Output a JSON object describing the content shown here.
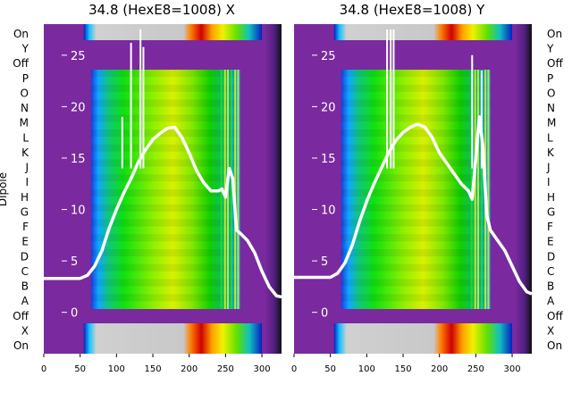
{
  "chart_data": [
    {
      "type": "heatmap",
      "title": "34.8 (HexE8=1008) X",
      "ylabel": "Dipole",
      "x_ticks": [
        0,
        50,
        100,
        150,
        200,
        250,
        300
      ],
      "xlim": [
        0,
        327
      ],
      "overlay_y_ticks": [
        0,
        5,
        10,
        15,
        20,
        25
      ],
      "overlay_ylim": [
        -3.5,
        27.5
      ],
      "row_labels": [
        "On",
        "Y",
        "Off",
        "P",
        "O",
        "N",
        "M",
        "L",
        "K",
        "J",
        "I",
        "H",
        "G",
        "F",
        "E",
        "D",
        "C",
        "B",
        "A",
        "Off",
        "X",
        "On"
      ],
      "power_trace": {
        "x": [
          0,
          50,
          60,
          70,
          80,
          90,
          100,
          110,
          120,
          130,
          140,
          150,
          160,
          170,
          180,
          190,
          200,
          210,
          220,
          230,
          240,
          245,
          250,
          255,
          260,
          265,
          270,
          280,
          290,
          300,
          310,
          320,
          327
        ],
        "y": [
          3.3,
          3.3,
          3.6,
          4.5,
          6.0,
          8.2,
          10.0,
          11.6,
          13.0,
          14.6,
          15.8,
          16.8,
          17.4,
          17.9,
          18.0,
          17.0,
          15.5,
          13.8,
          12.6,
          11.8,
          11.8,
          12.0,
          11.2,
          14.0,
          13.0,
          8.0,
          7.7,
          7.0,
          5.8,
          4.0,
          2.5,
          1.6,
          1.5
        ]
      },
      "spikes": [
        {
          "x": 120,
          "y": 26.2
        },
        {
          "x": 133,
          "y": 27.5
        },
        {
          "x": 137,
          "y": 25.8
        },
        {
          "x": 108,
          "y": 19.0
        }
      ]
    },
    {
      "type": "heatmap",
      "title": "34.8 (HexE8=1008) Y",
      "x_ticks": [
        0,
        50,
        100,
        150,
        200,
        250,
        300
      ],
      "xlim": [
        0,
        327
      ],
      "overlay_y_ticks": [
        0,
        5,
        10,
        15,
        20,
        25
      ],
      "overlay_ylim": [
        -3.5,
        27.5
      ],
      "row_labels": [
        "On",
        "Y",
        "Off",
        "P",
        "O",
        "N",
        "M",
        "L",
        "K",
        "J",
        "I",
        "H",
        "G",
        "F",
        "E",
        "D",
        "C",
        "B",
        "A",
        "Off",
        "X",
        "On"
      ],
      "power_trace": {
        "x": [
          0,
          50,
          60,
          70,
          80,
          90,
          100,
          110,
          120,
          130,
          140,
          150,
          160,
          170,
          180,
          190,
          200,
          210,
          220,
          230,
          240,
          245,
          250,
          255,
          260,
          265,
          270,
          280,
          290,
          300,
          310,
          320,
          327
        ],
        "y": [
          3.4,
          3.4,
          3.8,
          4.8,
          6.5,
          8.8,
          10.8,
          12.5,
          14.0,
          15.5,
          16.7,
          17.5,
          18.0,
          18.3,
          18.0,
          17.0,
          15.5,
          14.5,
          13.5,
          12.5,
          11.8,
          11.0,
          15.0,
          19.0,
          16.0,
          9.5,
          8.0,
          7.0,
          6.0,
          4.5,
          3.0,
          2.0,
          1.8
        ]
      },
      "spikes": [
        {
          "x": 128,
          "y": 27.5
        },
        {
          "x": 133,
          "y": 27.5
        },
        {
          "x": 137,
          "y": 27.5
        },
        {
          "x": 245,
          "y": 25.0
        },
        {
          "x": 258,
          "y": 23.5
        }
      ]
    }
  ]
}
